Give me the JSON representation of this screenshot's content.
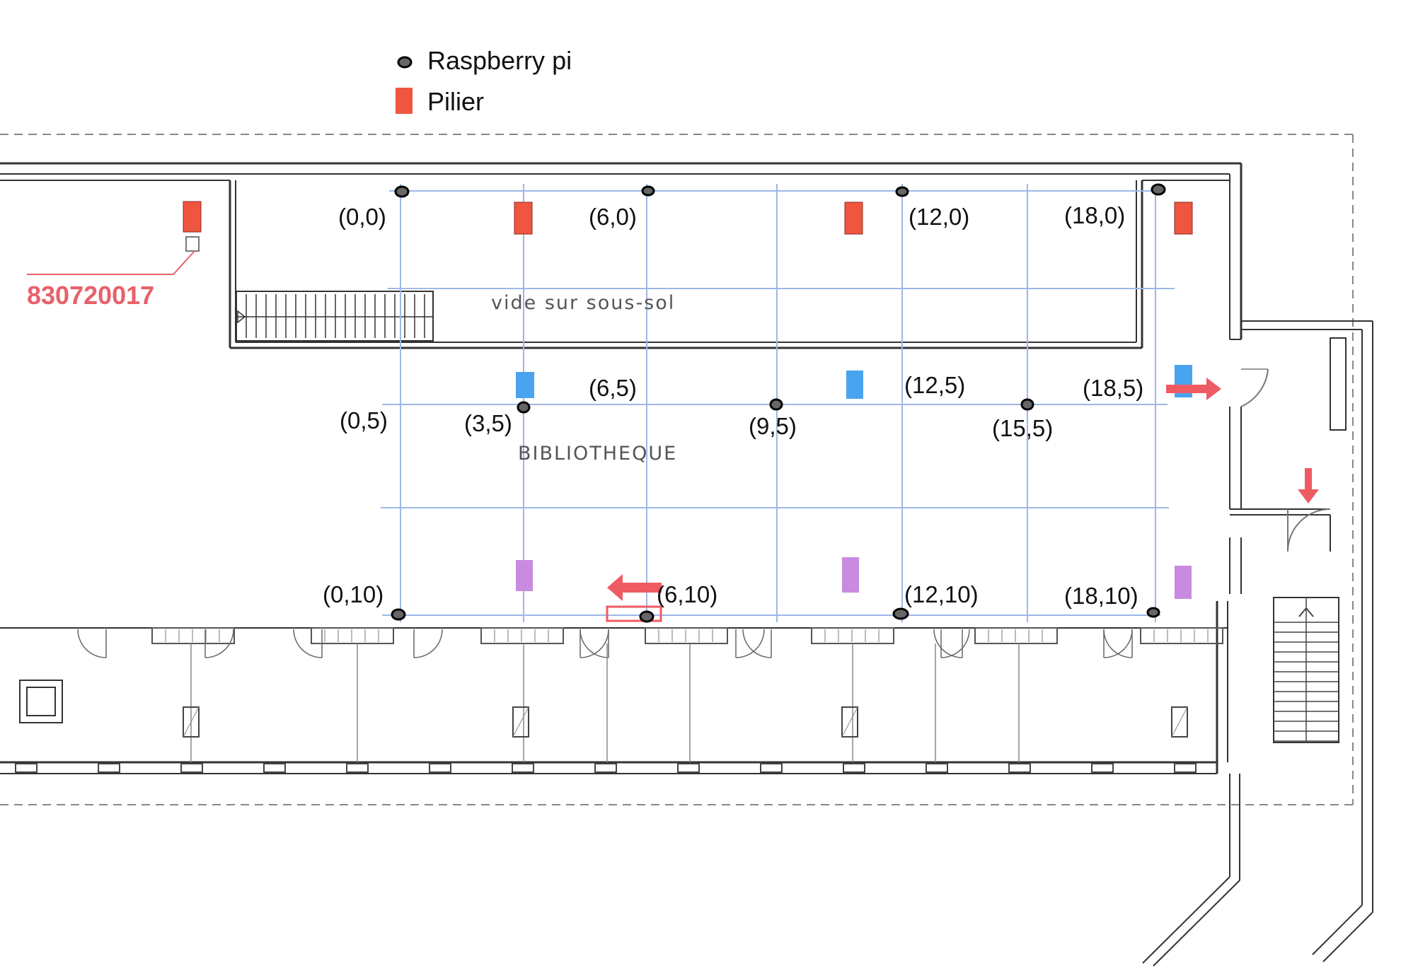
{
  "legend": {
    "raspberry_label": "Raspberry pi",
    "pilier_label": "Pilier"
  },
  "plan": {
    "reference_number": "830720017",
    "void_label": "vide sur sous-sol",
    "room_label": "BIBLIOTHEQUE"
  },
  "colors": {
    "pilier_red": "#f0553f",
    "pilier_blue": "#4aa3ef",
    "pilier_purple": "#c98be0",
    "arrow_red": "#ef5b63",
    "grid_blue": "#9db8e8"
  },
  "raspberry_nodes": [
    {
      "label": "(0,0)",
      "x": 0,
      "y": 0
    },
    {
      "label": "(6,0)",
      "x": 6,
      "y": 0
    },
    {
      "label": "(12,0)",
      "x": 12,
      "y": 0
    },
    {
      "label": "(18,0)",
      "x": 18,
      "y": 0
    },
    {
      "label": "(0,5)",
      "x": 0,
      "y": 5
    },
    {
      "label": "(3,5)",
      "x": 3,
      "y": 5
    },
    {
      "label": "(6,5)",
      "x": 6,
      "y": 5
    },
    {
      "label": "(9,5)",
      "x": 9,
      "y": 5
    },
    {
      "label": "(12,5)",
      "x": 12,
      "y": 5
    },
    {
      "label": "(15,5)",
      "x": 15,
      "y": 5
    },
    {
      "label": "(18,5)",
      "x": 18,
      "y": 5
    },
    {
      "label": "(0,10)",
      "x": 0,
      "y": 10
    },
    {
      "label": "(6,10)",
      "x": 6,
      "y": 10
    },
    {
      "label": "(12,10)",
      "x": 12,
      "y": 10
    },
    {
      "label": "(18,10)",
      "x": 18,
      "y": 10
    }
  ]
}
